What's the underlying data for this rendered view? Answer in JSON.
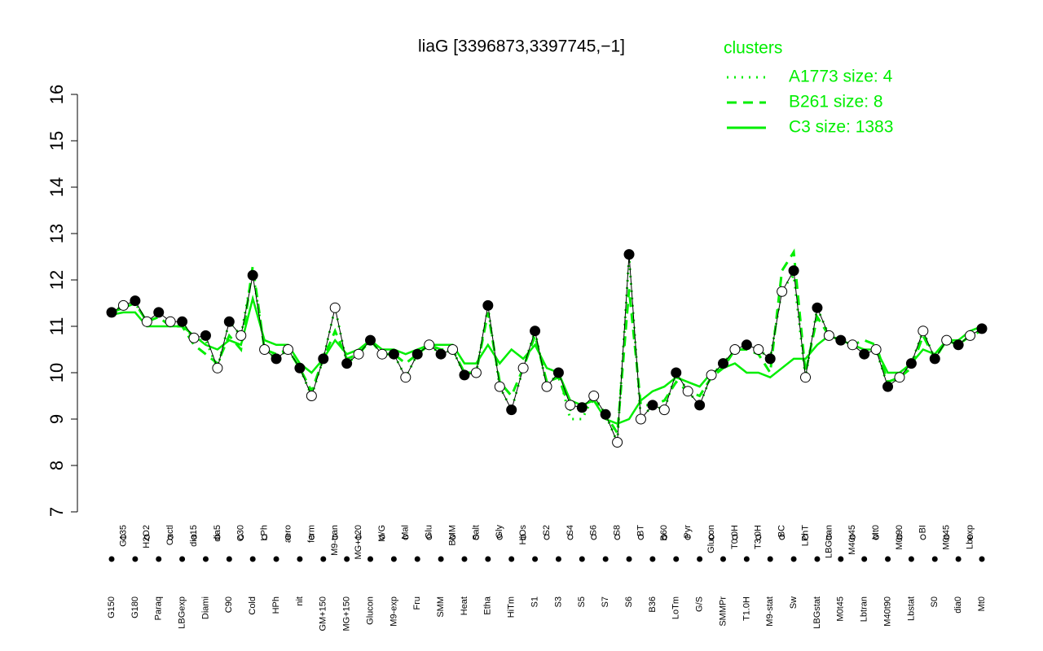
{
  "chart_data": {
    "type": "line",
    "title": "liaG [3396873,3397745,−1]",
    "legend_title": "clusters",
    "categories": [
      "G150",
      "G135",
      "G180",
      "H2O2",
      "Paraq",
      "Oxctl",
      "LBGexp",
      "dia15",
      "Diami",
      "dia5",
      "C90",
      "C30",
      "Cold",
      "LPh",
      "HPh",
      "aero",
      "nit",
      "ferm",
      "GM+150",
      "M9-tran",
      "MG+150",
      "MG+120",
      "Glucon",
      "M/G",
      "M9-exp",
      "Mal",
      "Fru",
      "Glu",
      "SMM",
      "BMM",
      "Heat",
      "Salt",
      "Etha",
      "Gly",
      "HiTm",
      "HiOs",
      "S1",
      "S2",
      "S3",
      "S4",
      "S5",
      "S6",
      "S7",
      "S8",
      "S6",
      "BT",
      "B36",
      "B60",
      "LoTm",
      "Pyr",
      "G/S",
      "Glucon",
      "SMMPr",
      "T0.0H",
      "T1.0H",
      "T3.0H",
      "M9-stat",
      "BC",
      "Sw",
      "LPhT",
      "LBGstat",
      "LBGtran",
      "M0t45",
      "M40t45",
      "Lbtran",
      "Mt0",
      "M40t90",
      "M0t90",
      "Lbstat",
      "BI",
      "S0",
      "M0t45",
      "dia0",
      "Lbexp",
      "Mt0"
    ],
    "values": [
      11.3,
      11.45,
      11.55,
      11.1,
      11.3,
      11.1,
      11.1,
      10.75,
      10.8,
      10.1,
      11.1,
      10.8,
      12.1,
      10.5,
      10.3,
      10.5,
      10.1,
      9.5,
      10.3,
      11.4,
      10.2,
      10.4,
      10.7,
      10.4,
      10.4,
      9.9,
      10.4,
      10.6,
      10.4,
      10.5,
      9.95,
      10.0,
      11.45,
      9.7,
      9.2,
      10.1,
      10.9,
      9.7,
      10.0,
      9.3,
      9.25,
      9.5,
      9.1,
      8.5,
      12.55,
      9.0,
      9.3,
      9.2,
      10.0,
      9.6,
      9.3,
      9.95,
      10.2,
      10.5,
      10.6,
      10.5,
      10.3,
      11.75,
      12.2,
      9.9,
      11.4,
      10.8,
      10.7,
      10.6,
      10.4,
      10.5,
      9.7,
      9.9,
      10.2,
      10.9,
      10.3,
      10.7,
      10.6,
      10.8,
      10.95
    ],
    "series": [
      {
        "name": "A1773 size: 4",
        "color": "#00ee00",
        "dash": "dotted",
        "values": [
          11.3,
          11.45,
          11.5,
          11.1,
          11.3,
          11.1,
          11.1,
          10.7,
          10.7,
          10.1,
          11.1,
          10.8,
          12.2,
          10.5,
          10.3,
          10.5,
          10.1,
          9.5,
          10.3,
          11.4,
          10.2,
          10.4,
          10.7,
          10.4,
          10.4,
          9.9,
          10.4,
          10.6,
          10.4,
          10.5,
          9.95,
          10.0,
          11.4,
          9.7,
          9.2,
          10.1,
          10.9,
          9.7,
          10.0,
          9.0,
          9.0,
          9.5,
          9.1,
          8.5,
          12.5,
          9.0,
          9.3,
          9.2,
          10.0,
          9.6,
          9.3,
          9.95,
          10.2,
          10.5,
          10.6,
          10.5,
          10.3,
          11.8,
          12.1,
          9.9,
          11.4,
          10.8,
          10.7,
          10.6,
          10.4,
          10.5,
          9.7,
          9.9,
          10.2,
          10.9,
          10.3,
          10.7,
          10.6,
          10.8,
          10.95
        ]
      },
      {
        "name": "B261 size: 8",
        "color": "#00ee00",
        "dash": "dashed",
        "values": [
          11.3,
          11.4,
          11.5,
          11.1,
          11.2,
          11.0,
          11.0,
          10.6,
          10.4,
          10.2,
          10.8,
          10.5,
          12.3,
          10.5,
          10.4,
          10.5,
          10.1,
          9.6,
          10.3,
          10.9,
          10.3,
          10.4,
          10.7,
          10.4,
          10.4,
          10.2,
          10.4,
          10.6,
          10.5,
          10.5,
          10.0,
          10.0,
          11.3,
          9.8,
          9.5,
          10.1,
          10.8,
          9.8,
          9.9,
          9.2,
          9.2,
          9.4,
          9.1,
          8.7,
          11.8,
          9.3,
          9.3,
          9.4,
          9.8,
          9.6,
          9.5,
          9.9,
          10.1,
          10.5,
          10.5,
          10.4,
          10.0,
          12.2,
          12.6,
          10.0,
          11.2,
          10.8,
          10.7,
          10.6,
          10.7,
          10.6,
          9.8,
          9.9,
          10.1,
          10.8,
          10.3,
          10.7,
          10.6,
          10.8,
          10.9
        ]
      },
      {
        "name": "C3 size: 1383",
        "color": "#00ee00",
        "dash": "solid",
        "values": [
          11.25,
          11.3,
          11.3,
          11.0,
          11.0,
          11.0,
          11.0,
          10.8,
          10.6,
          10.5,
          10.7,
          10.6,
          11.6,
          10.7,
          10.6,
          10.6,
          10.2,
          10.0,
          10.3,
          10.7,
          10.4,
          10.5,
          10.7,
          10.5,
          10.5,
          10.4,
          10.5,
          10.6,
          10.6,
          10.6,
          10.2,
          10.2,
          10.6,
          10.2,
          10.5,
          10.3,
          10.6,
          10.1,
          10.0,
          9.4,
          9.3,
          9.4,
          9.0,
          8.9,
          9.0,
          9.4,
          9.6,
          9.7,
          9.9,
          9.8,
          9.7,
          10.0,
          10.1,
          10.2,
          10.0,
          10.0,
          9.9,
          10.1,
          10.3,
          10.3,
          10.6,
          10.8,
          10.7,
          10.6,
          10.5,
          10.5,
          10.0,
          10.0,
          10.2,
          10.5,
          10.4,
          10.7,
          10.7,
          10.9,
          11.0
        ]
      }
    ],
    "ylim": [
      7,
      16
    ],
    "yticks": [
      7,
      8,
      9,
      10,
      11,
      12,
      13,
      14,
      15,
      16
    ]
  }
}
